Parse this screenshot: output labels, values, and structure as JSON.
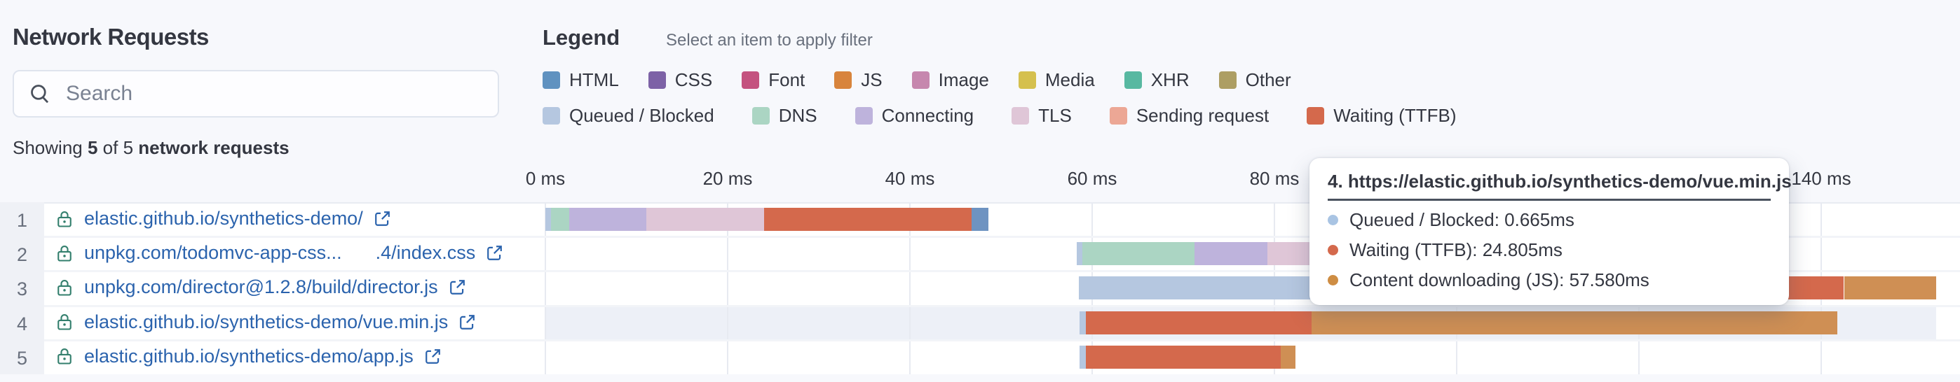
{
  "header": {
    "title": "Network Requests",
    "search_placeholder": "Search",
    "showing": {
      "prefix": "Showing",
      "count": "5",
      "middle": "of 5",
      "suffix": "network requests"
    }
  },
  "legend": {
    "title": "Legend",
    "hint": "Select an item to apply filter",
    "mime_types": [
      {
        "label": "HTML",
        "color": "#6092c0"
      },
      {
        "label": "CSS",
        "color": "#7d62a6"
      },
      {
        "label": "Font",
        "color": "#c4537f"
      },
      {
        "label": "JS",
        "color": "#d8843c"
      },
      {
        "label": "Image",
        "color": "#c687ae"
      },
      {
        "label": "Media",
        "color": "#d5c04e"
      },
      {
        "label": "XHR",
        "color": "#58b8a1"
      },
      {
        "label": "Other",
        "color": "#ad9e63"
      }
    ],
    "phases": [
      {
        "phase": "queued",
        "label": "Queued / Blocked"
      },
      {
        "phase": "dns",
        "label": "DNS"
      },
      {
        "phase": "connecting",
        "label": "Connecting"
      },
      {
        "phase": "tls",
        "label": "TLS"
      },
      {
        "phase": "sending",
        "label": "Sending request"
      },
      {
        "phase": "waiting",
        "label": "Waiting (TTFB)"
      }
    ]
  },
  "phase_colors": {
    "queued": "#b5c7e0",
    "dns": "#abd5c3",
    "connecting": "#beb3dc",
    "tls": "#dfc6d7",
    "sending": "#eca795",
    "waiting": "#d4694c",
    "content_html": "#6e93c1",
    "content_js": "#cf8f54"
  },
  "axis": {
    "unit": "ms",
    "ticks": [
      {
        "label": "0 ms",
        "ms": 0
      },
      {
        "label": "20 ms",
        "ms": 20
      },
      {
        "label": "40 ms",
        "ms": 40
      },
      {
        "label": "60 ms",
        "ms": 60
      },
      {
        "label": "80 ms",
        "ms": 80
      },
      {
        "label": "100 ms",
        "ms": 100
      },
      {
        "label": "120 ms",
        "ms": 120
      },
      {
        "label": "140 ms",
        "ms": 140
      }
    ]
  },
  "highlighted_request": 4,
  "requests": [
    {
      "number": "1",
      "url": "elastic.github.io/synthetics-demo/",
      "url_tail": "",
      "segments": [
        {
          "phase": "queued",
          "start_ms": 0.0,
          "end_ms": 0.6
        },
        {
          "phase": "dns",
          "start_ms": 0.6,
          "end_ms": 2.6
        },
        {
          "phase": "connecting",
          "start_ms": 2.6,
          "end_ms": 11.1
        },
        {
          "phase": "tls",
          "start_ms": 11.1,
          "end_ms": 24.0
        },
        {
          "phase": "waiting",
          "start_ms": 24.0,
          "end_ms": 46.8
        },
        {
          "phase": "content_html",
          "start_ms": 46.8,
          "end_ms": 48.6
        }
      ]
    },
    {
      "number": "2",
      "url": "unpkg.com/todomvc-app-css...",
      "url_tail": ".4/index.css",
      "segments": [
        {
          "phase": "queued",
          "start_ms": 58.3,
          "end_ms": 58.9
        },
        {
          "phase": "dns",
          "start_ms": 58.9,
          "end_ms": 71.2
        },
        {
          "phase": "connecting",
          "start_ms": 71.2,
          "end_ms": 79.2
        },
        {
          "phase": "tls",
          "start_ms": 79.2,
          "end_ms": 93.2
        }
      ]
    },
    {
      "number": "3",
      "url": "unpkg.com/director@1.2.8/build/director.js",
      "url_tail": "",
      "segments": [
        {
          "phase": "queued",
          "start_ms": 58.5,
          "end_ms": 99.1
        },
        {
          "phase": "waiting",
          "start_ms": 99.1,
          "end_ms": 142.5
        },
        {
          "phase": "content_js",
          "start_ms": 142.5,
          "end_ms": 152.6
        }
      ]
    },
    {
      "number": "4",
      "url": "elastic.github.io/synthetics-demo/vue.min.js",
      "url_tail": "",
      "segments": [
        {
          "phase": "queued",
          "start_ms": 58.6,
          "end_ms": 59.3
        },
        {
          "phase": "waiting",
          "start_ms": 59.3,
          "end_ms": 84.1
        },
        {
          "phase": "content_js",
          "start_ms": 84.1,
          "end_ms": 141.8
        }
      ]
    },
    {
      "number": "5",
      "url": "elastic.github.io/synthetics-demo/app.js",
      "url_tail": "",
      "segments": [
        {
          "phase": "queued",
          "start_ms": 58.6,
          "end_ms": 59.3
        },
        {
          "phase": "waiting",
          "start_ms": 59.3,
          "end_ms": 80.7
        },
        {
          "phase": "content_js",
          "start_ms": 80.7,
          "end_ms": 82.3
        }
      ]
    }
  ],
  "tooltip": {
    "title": "4. https://elastic.github.io/synthetics-demo/vue.min.js",
    "items": [
      {
        "label": "Queued / Blocked: 0.665ms",
        "color": "#a9c4e3"
      },
      {
        "label": "Waiting (TTFB): 24.805ms",
        "color": "#d4694c"
      },
      {
        "label": "Content downloading (JS): 57.580ms",
        "color": "#ce8d43"
      }
    ]
  }
}
